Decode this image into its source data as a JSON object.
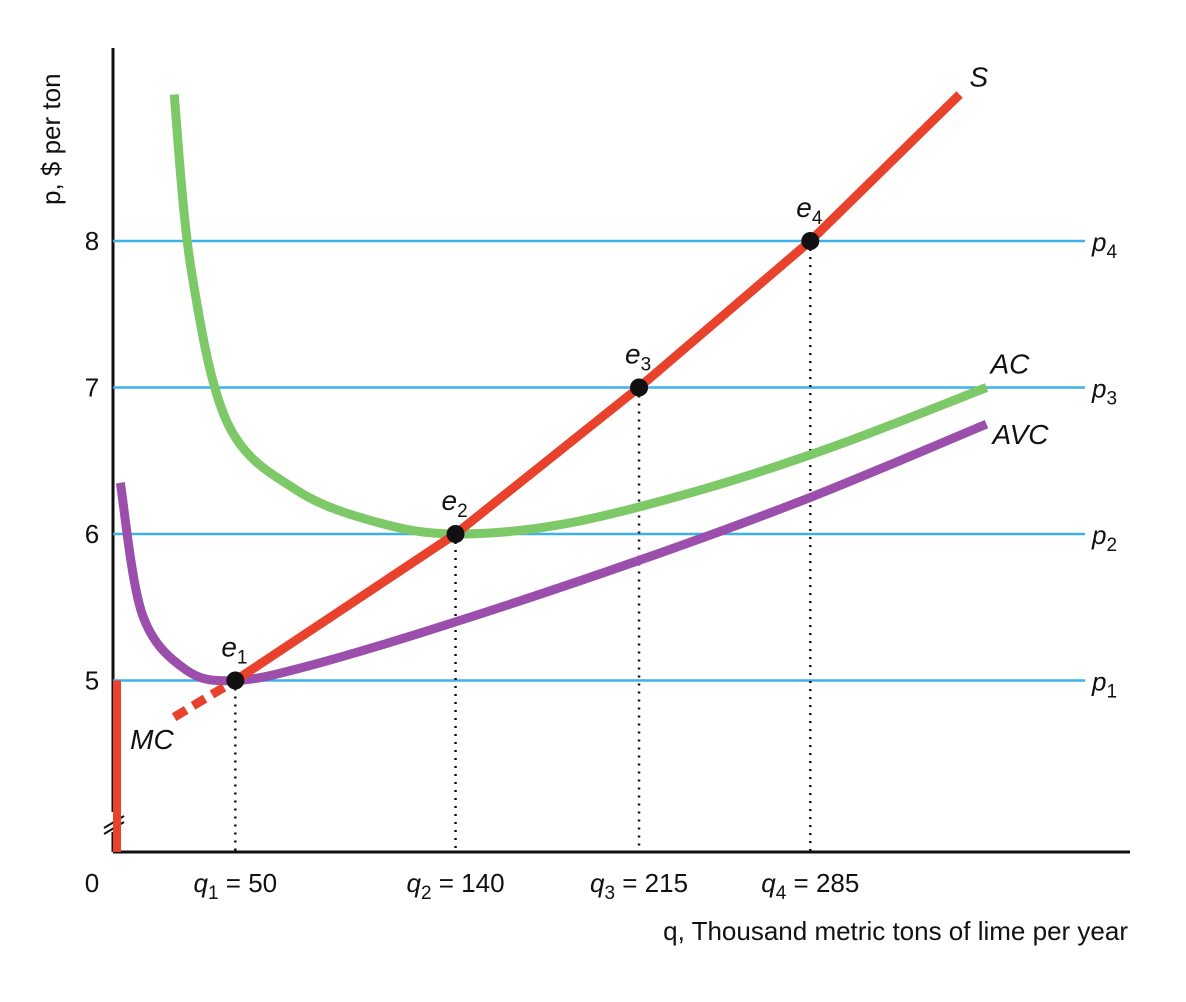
{
  "chart_data": {
    "type": "line",
    "ylabel": "p, $ per ton",
    "xlabel": "q, Thousand metric tons of lime per year",
    "origin_label": "0",
    "y_ticks": [
      {
        "label": "5",
        "value": 5
      },
      {
        "label": "6",
        "value": 6
      },
      {
        "label": "7",
        "value": 7
      },
      {
        "label": "8",
        "value": 8
      }
    ],
    "x_ticks": [
      {
        "var": "q",
        "sub": "1",
        "text": " = 50",
        "value": 50
      },
      {
        "var": "q",
        "sub": "2",
        "text": " = 140",
        "value": 140
      },
      {
        "var": "q",
        "sub": "3",
        "text": " = 215",
        "value": 215
      },
      {
        "var": "q",
        "sub": "4",
        "text": " = 285",
        "value": 285
      }
    ],
    "price_lines": [
      {
        "var": "p",
        "sub": "1",
        "value": 5
      },
      {
        "var": "p",
        "sub": "2",
        "value": 6
      },
      {
        "var": "p",
        "sub": "3",
        "value": 7
      },
      {
        "var": "p",
        "sub": "4",
        "value": 8
      }
    ],
    "equilibria": [
      {
        "var": "e",
        "sub": "1",
        "q": 50,
        "p": 5
      },
      {
        "var": "e",
        "sub": "2",
        "q": 140,
        "p": 6
      },
      {
        "var": "e",
        "sub": "3",
        "q": 215,
        "p": 7
      },
      {
        "var": "e",
        "sub": "4",
        "q": 285,
        "p": 8
      }
    ],
    "series": [
      {
        "name": "S",
        "color": "#e8412c",
        "points": [
          [
            50,
            5
          ],
          [
            140,
            6
          ],
          [
            215,
            7
          ],
          [
            285,
            8
          ],
          [
            346,
            9.0
          ]
        ],
        "vertical_segment": {
          "q": 0,
          "p_from": 3.85,
          "p_to": 5
        }
      },
      {
        "name": "MC",
        "color": "#e8412c",
        "dashed": true,
        "points": [
          [
            25,
            4.75
          ],
          [
            50,
            5
          ]
        ]
      },
      {
        "name": "AC",
        "color": "#7dc867",
        "points": [
          [
            25,
            9.0
          ],
          [
            32,
            7.8
          ],
          [
            47,
            6.75
          ],
          [
            75,
            6.3
          ],
          [
            108,
            6.08
          ],
          [
            140,
            6.0
          ],
          [
            185,
            6.07
          ],
          [
            240,
            6.3
          ],
          [
            295,
            6.6
          ],
          [
            357,
            7.0
          ]
        ]
      },
      {
        "name": "AVC",
        "color": "#9b4eab",
        "points": [
          [
            3,
            6.35
          ],
          [
            12,
            5.45
          ],
          [
            30,
            5.07
          ],
          [
            50,
            5.0
          ],
          [
            80,
            5.1
          ],
          [
            140,
            5.4
          ],
          [
            215,
            5.82
          ],
          [
            285,
            6.25
          ],
          [
            357,
            6.75
          ]
        ]
      }
    ],
    "xlim": [
      0,
      415
    ],
    "ylim": [
      3.85,
      9.35
    ],
    "axis_break": "y",
    "grid": false,
    "colors": {
      "price_lines": "#3db1ea",
      "points": "#111111",
      "axes": "#111111"
    }
  }
}
